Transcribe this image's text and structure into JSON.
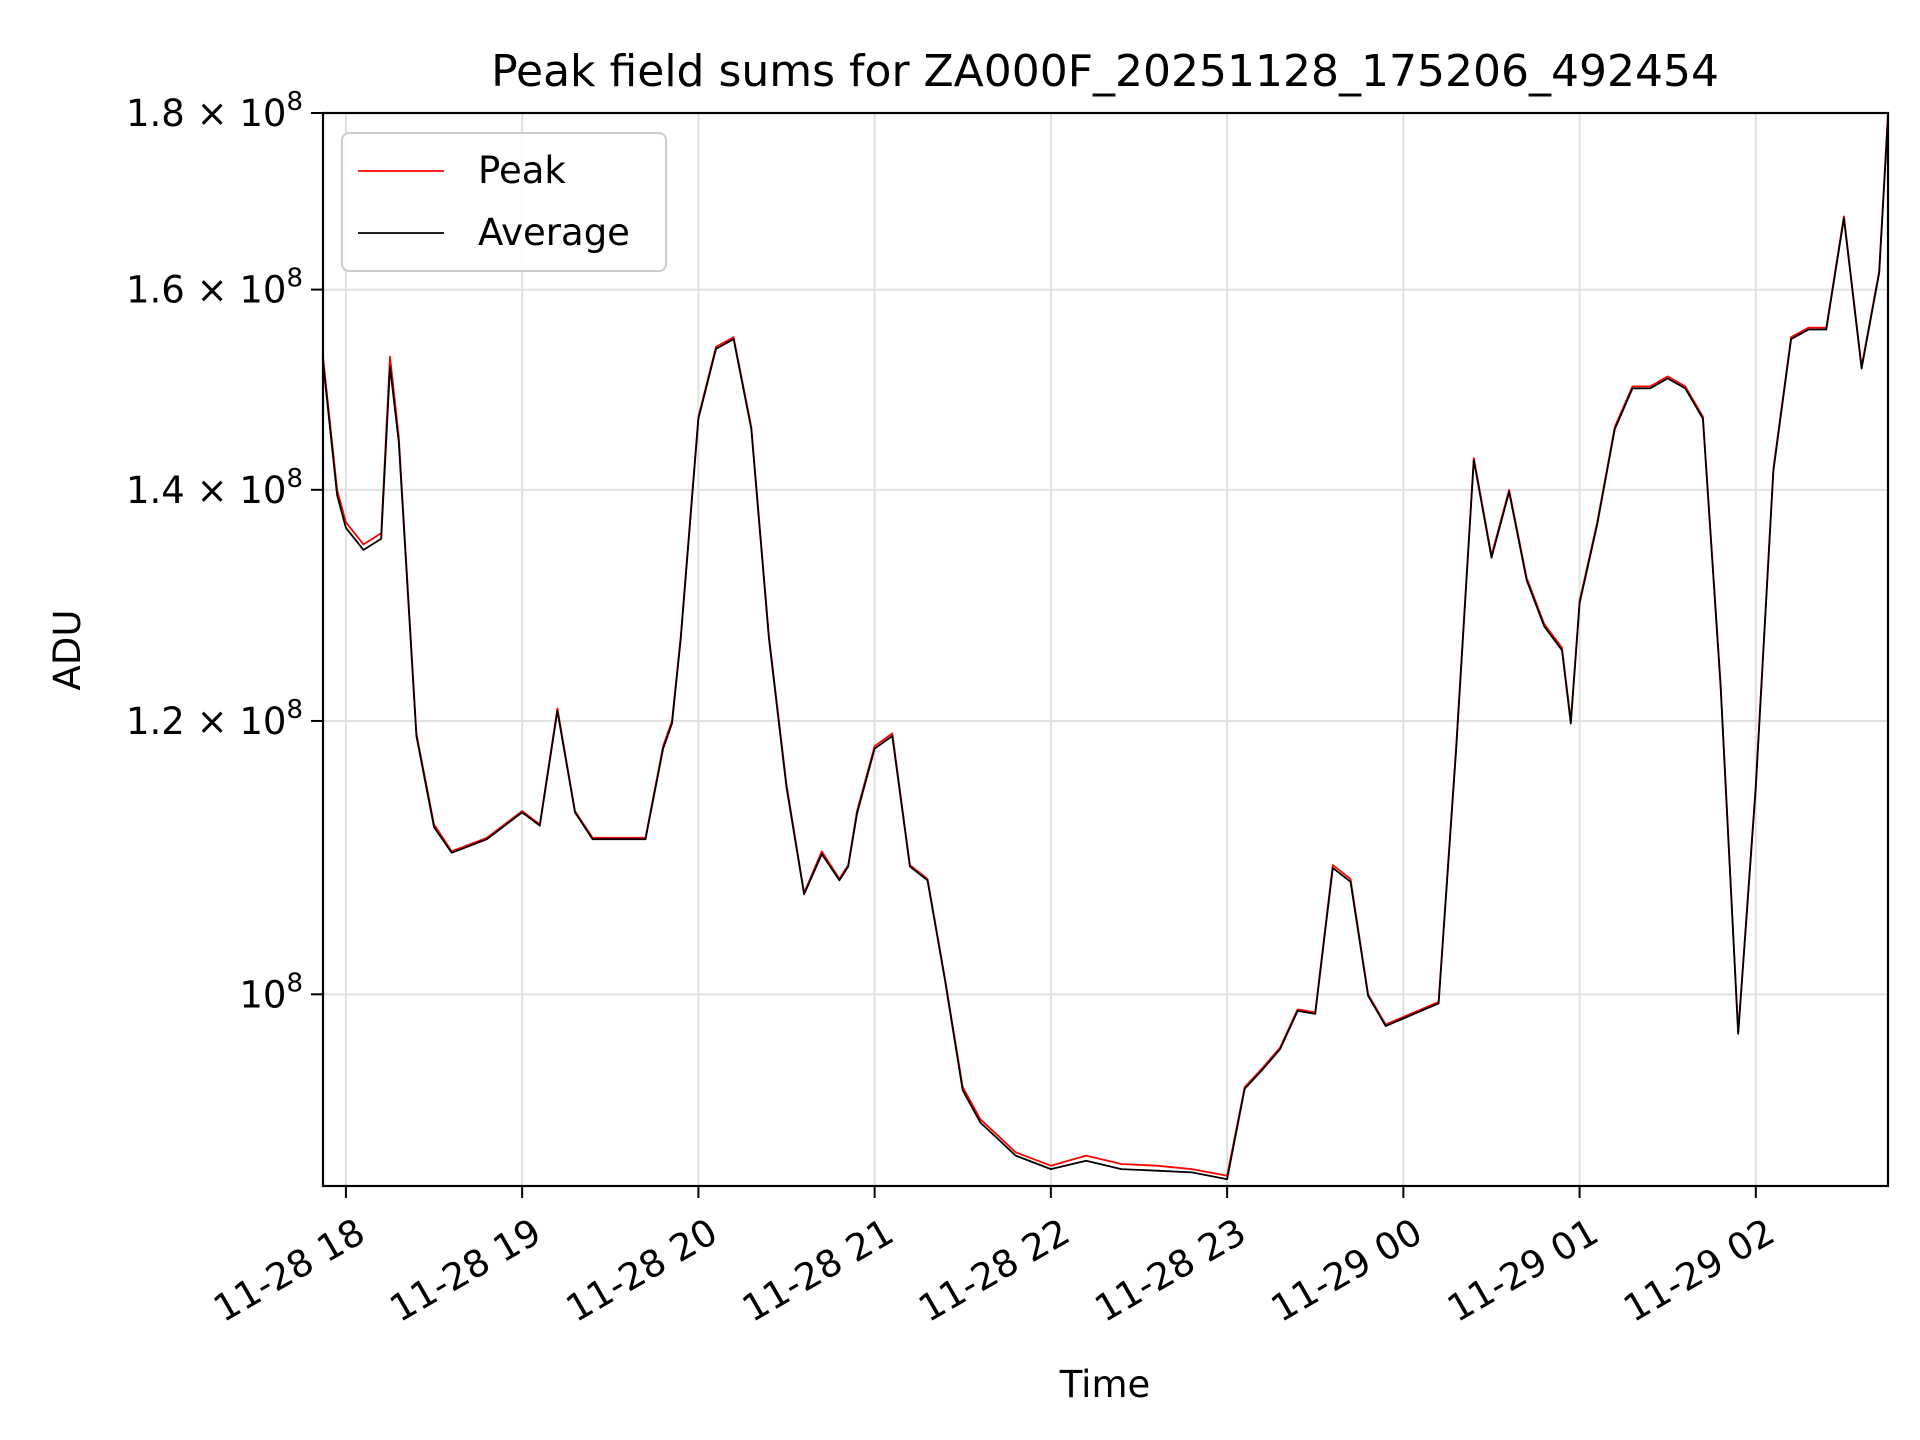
{
  "chart_data": {
    "type": "line",
    "title": "Peak field sums for ZA000F_20251128_175206_492454",
    "xlabel": "Time",
    "ylabel": "ADU",
    "yscale": "log",
    "grid": true,
    "legend_position": "upper-left",
    "xlim_hours": [
      17.87,
      26.75
    ],
    "ylim": [
      88000000,
      180000000
    ],
    "x_ticks": [
      {
        "hour": 18,
        "label": "11-28 18"
      },
      {
        "hour": 19,
        "label": "11-28 19"
      },
      {
        "hour": 20,
        "label": "11-28 20"
      },
      {
        "hour": 21,
        "label": "11-28 21"
      },
      {
        "hour": 22,
        "label": "11-28 22"
      },
      {
        "hour": 23,
        "label": "11-28 23"
      },
      {
        "hour": 24,
        "label": "11-29 00"
      },
      {
        "hour": 25,
        "label": "11-29 01"
      },
      {
        "hour": 26,
        "label": "11-29 02"
      }
    ],
    "y_ticks": [
      {
        "value": 100000000,
        "mantissa": "",
        "exponent": "8"
      },
      {
        "value": 120000000,
        "mantissa": "1.2",
        "exponent": "8"
      },
      {
        "value": 140000000,
        "mantissa": "1.4",
        "exponent": "8"
      },
      {
        "value": 160000000,
        "mantissa": "1.6",
        "exponent": "8"
      },
      {
        "value": 180000000,
        "mantissa": "1.8",
        "exponent": "8"
      }
    ],
    "x_hours": [
      17.87,
      17.95,
      18.0,
      18.1,
      18.2,
      18.25,
      18.3,
      18.4,
      18.5,
      18.6,
      18.8,
      19.0,
      19.1,
      19.2,
      19.3,
      19.4,
      19.5,
      19.7,
      19.8,
      19.85,
      19.9,
      20.0,
      20.1,
      20.2,
      20.3,
      20.4,
      20.5,
      20.6,
      20.7,
      20.8,
      20.85,
      20.9,
      21.0,
      21.1,
      21.2,
      21.3,
      21.4,
      21.5,
      21.6,
      21.7,
      21.8,
      22.0,
      22.2,
      22.4,
      22.6,
      22.8,
      23.0,
      23.1,
      23.2,
      23.3,
      23.4,
      23.5,
      23.6,
      23.7,
      23.8,
      23.9,
      24.0,
      24.1,
      24.2,
      24.3,
      24.4,
      24.5,
      24.6,
      24.7,
      24.8,
      24.9,
      24.95,
      25.0,
      25.1,
      25.2,
      25.3,
      25.4,
      25.5,
      25.6,
      25.7,
      25.8,
      25.9,
      26.0,
      26.1,
      26.2,
      26.3,
      26.4,
      26.5,
      26.6,
      26.7,
      26.75
    ],
    "series": [
      {
        "name": "Peak",
        "color": "#ff0000",
        "values": [
          153000000,
          140000000,
          137000000,
          135000000,
          136000000,
          153000000,
          145000000,
          119000000,
          112000000,
          110000000,
          111000000,
          113000000,
          112000000,
          121000000,
          113000000,
          111000000,
          111000000,
          111000000,
          118000000,
          120000000,
          127000000,
          147000000,
          154000000,
          155000000,
          146000000,
          127000000,
          115000000,
          107000000,
          110000000,
          108000000,
          109000000,
          113000000,
          118000000,
          119000000,
          109000000,
          108000000,
          101000000,
          94000000,
          92000000,
          91000000,
          90000000,
          89200000,
          89800000,
          89300000,
          89200000,
          89000000,
          88600000,
          94000000,
          95200000,
          96500000,
          99000000,
          98800000,
          109000000,
          108000000,
          100000000,
          98000000,
          98500000,
          99000000,
          99500000,
          118000000,
          143000000,
          134000000,
          140000000,
          132000000,
          128000000,
          126000000,
          120000000,
          130000000,
          137000000,
          146000000,
          150000000,
          150000000,
          151000000,
          150000000,
          147000000,
          123000000,
          97500000,
          115000000,
          142000000,
          155000000,
          156000000,
          156000000,
          168000000,
          152000000,
          162000000,
          180000000
        ]
      },
      {
        "name": "Average",
        "color": "#000000",
        "values": [
          152500000,
          139500000,
          136500000,
          134500000,
          135500000,
          152000000,
          144500000,
          118800000,
          111800000,
          109900000,
          110900000,
          112900000,
          111900000,
          120800000,
          112900000,
          110900000,
          110900000,
          110900000,
          117800000,
          119800000,
          126800000,
          146800000,
          153800000,
          154800000,
          145800000,
          126800000,
          114800000,
          106900000,
          109800000,
          107900000,
          108900000,
          112800000,
          117800000,
          118800000,
          108900000,
          107900000,
          100900000,
          93800000,
          91800000,
          90800000,
          89800000,
          89000000,
          89500000,
          89000000,
          88900000,
          88800000,
          88400000,
          93900000,
          95100000,
          96400000,
          98900000,
          98700000,
          108800000,
          107800000,
          99900000,
          97900000,
          98400000,
          98900000,
          99400000,
          117800000,
          142800000,
          133800000,
          139800000,
          131800000,
          127800000,
          125800000,
          119800000,
          129800000,
          136800000,
          145800000,
          149800000,
          149800000,
          150800000,
          149800000,
          146800000,
          122800000,
          97400000,
          114800000,
          141800000,
          154800000,
          155800000,
          155800000,
          167800000,
          151800000,
          161800000,
          179500000
        ]
      }
    ]
  }
}
